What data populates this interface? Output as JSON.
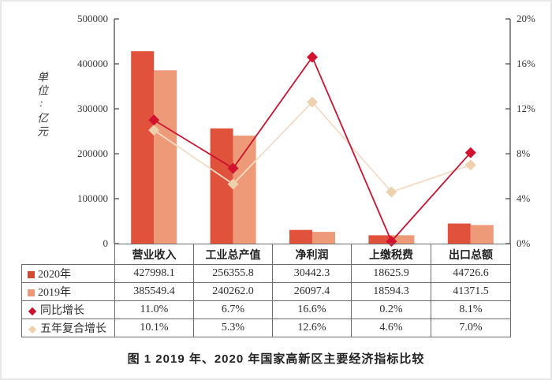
{
  "figure": {
    "caption": "图 1  2019 年、2020 年国家高新区主要经济指标比较"
  },
  "chart_data": {
    "type": "bar+line",
    "unit_label": "单位:亿元",
    "categories": [
      "营业收入",
      "工业总产值",
      "净利润",
      "上缴税费",
      "出口总额"
    ],
    "bar_series": [
      {
        "name": "2020年",
        "color": "#e0523c",
        "values": [
          427998.1,
          256355.8,
          30442.3,
          18625.9,
          44726.6
        ]
      },
      {
        "name": "2019年",
        "color": "#ee9a78",
        "values": [
          385549.4,
          240262.0,
          26097.4,
          18594.3,
          41371.5
        ]
      }
    ],
    "line_series": [
      {
        "name": "同比增长",
        "line_color": "#c9122f",
        "marker_color": "#d2122f",
        "marker": "diamond",
        "values_pct": [
          11.0,
          6.7,
          16.6,
          0.2,
          8.1
        ]
      },
      {
        "name": "五年复合增长",
        "line_color": "#f4dbc4",
        "marker_color": "#eed0ae",
        "marker": "diamond",
        "values_pct": [
          10.1,
          5.3,
          12.6,
          4.6,
          7.0
        ]
      }
    ],
    "left_axis": {
      "min": 0,
      "max": 500000,
      "ticks": [
        "0",
        "100000",
        "200000",
        "300000",
        "400000",
        "500000"
      ]
    },
    "right_axis": {
      "min": 0,
      "max": 20,
      "ticks": [
        "0%",
        "4%",
        "8%",
        "12%",
        "16%",
        "20%"
      ]
    },
    "grid": "off",
    "legend_position": "table-below"
  },
  "table": {
    "col_headers": [
      "营业收入",
      "工业总产值",
      "净利润",
      "上缴税费",
      "出口总额"
    ],
    "rows": [
      {
        "label": "2020年",
        "marker": "square",
        "marker_color": "#cf4a31",
        "cells": [
          "427998.1",
          "256355.8",
          "30442.3",
          "18625.9",
          "44726.6"
        ]
      },
      {
        "label": "2019年",
        "marker": "square",
        "marker_color": "#ec9878",
        "cells": [
          "385549.4",
          "240262.0",
          "26097.4",
          "18594.3",
          "41371.5"
        ]
      },
      {
        "label": "同比增长",
        "marker": "diamond",
        "marker_color": "#c9122f",
        "cells": [
          "11.0%",
          "6.7%",
          "16.6%",
          "0.2%",
          "8.1%"
        ]
      },
      {
        "label": "五年复合增长",
        "marker": "diamond",
        "marker_color": "#eed0b0",
        "cells": [
          "10.1%",
          "5.3%",
          "12.6%",
          "4.6%",
          "7.0%"
        ]
      }
    ]
  }
}
